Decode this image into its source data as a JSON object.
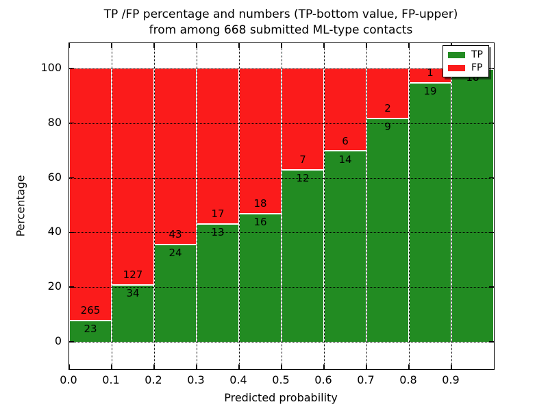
{
  "title": {
    "line1": "TP /FP percentage and numbers (TP-bottom value, FP-upper)",
    "line2": "from among 668 submitted ML-type contacts"
  },
  "chart_data": {
    "type": "bar",
    "stacked": true,
    "title": "TP /FP percentage and numbers (TP-bottom value, FP-upper) from among 668 submitted ML-type contacts",
    "xlabel": "Predicted probability",
    "ylabel": "Percentage",
    "total_contacts": 668,
    "categories": [
      "0.0-0.1",
      "0.1-0.2",
      "0.2-0.3",
      "0.3-0.4",
      "0.4-0.5",
      "0.5-0.6",
      "0.6-0.7",
      "0.7-0.8",
      "0.8-0.9",
      "0.9-1.0"
    ],
    "series": [
      {
        "name": "TP",
        "color": "#228b22",
        "counts": [
          23,
          34,
          24,
          13,
          16,
          12,
          14,
          9,
          19,
          18
        ]
      },
      {
        "name": "FP",
        "color": "#fb1b1b",
        "counts": [
          265,
          127,
          43,
          17,
          18,
          7,
          6,
          2,
          1,
          0
        ]
      }
    ],
    "bars_normalized_to_percent": true,
    "xticks": [
      "0.0",
      "0.1",
      "0.2",
      "0.3",
      "0.4",
      "0.5",
      "0.6",
      "0.7",
      "0.8",
      "0.9"
    ],
    "yticks": [
      0,
      20,
      40,
      60,
      80,
      100
    ],
    "xlim": [
      0,
      1
    ],
    "ylim": [
      -10,
      109.2
    ],
    "grid": "dotted",
    "legend": {
      "position": "upper right",
      "entries": [
        {
          "label": "TP",
          "color": "#228b22"
        },
        {
          "label": "FP",
          "color": "#fb1b1b"
        }
      ]
    }
  }
}
